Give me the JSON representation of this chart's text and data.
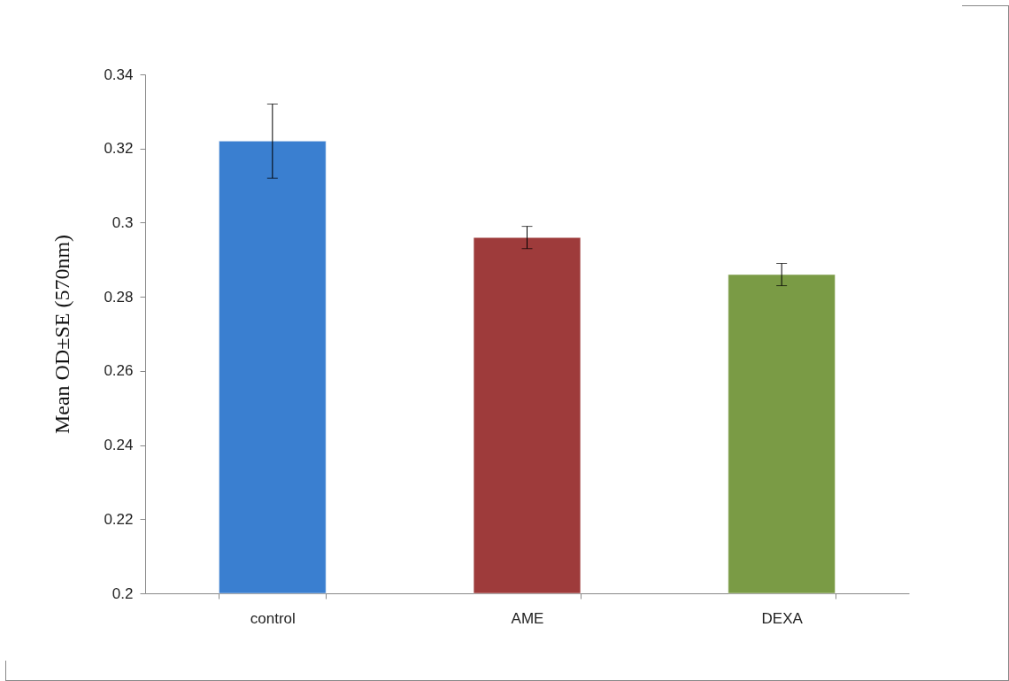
{
  "chart_data": {
    "type": "bar",
    "ylabel": "Mean OD±SE (570nm)",
    "categories": [
      "control",
      "AME",
      "DEXA"
    ],
    "values": [
      0.322,
      0.296,
      0.286
    ],
    "errors": [
      0.01,
      0.003,
      0.003
    ],
    "colors": [
      "#3a7fd0",
      "#9e3b3b",
      "#7a9b45"
    ],
    "ylim": [
      0.2,
      0.34
    ],
    "yticks": [
      0.2,
      0.22,
      0.24,
      0.26,
      0.28,
      0.3,
      0.32,
      0.34
    ],
    "grid": false
  }
}
